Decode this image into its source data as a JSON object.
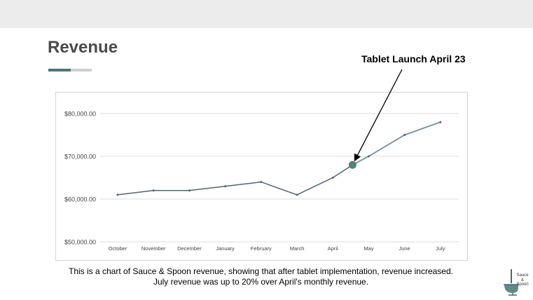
{
  "slide": {
    "title": "Revenue",
    "annotation": "Tablet Launch April 23",
    "caption_line1": "This is a chart of Sauce & Spoon revenue, showing that after tablet implementation, revenue increased.",
    "caption_line2": "July revenue was up to 20% over April's monthly revenue.",
    "logo_line1": "Sauce",
    "logo_line2": "&",
    "logo_line3": "Spoon"
  },
  "colors": {
    "line": "#4f6670",
    "line_after_launch": "#7d9aa5",
    "marker": "#4e8578",
    "gridline": "#dddddd",
    "accent": "#4f7483"
  },
  "chart_data": {
    "type": "line",
    "categories": [
      "October",
      "November",
      "December",
      "January",
      "February",
      "March",
      "April",
      "May",
      "June",
      "July"
    ],
    "values": [
      61000,
      62000,
      62000,
      63000,
      64000,
      61000,
      65000,
      70000,
      75000,
      78000
    ],
    "highlight": {
      "x_position": 6.55,
      "value": 68000,
      "label": "Tablet Launch April 23"
    },
    "ylim": [
      50000,
      80000
    ],
    "yticks": [
      50000,
      60000,
      70000,
      80000
    ],
    "ytick_labels": [
      "$50,000.00",
      "$60,000.00",
      "$70,000.00",
      "$80,000.00"
    ],
    "grid": true
  }
}
